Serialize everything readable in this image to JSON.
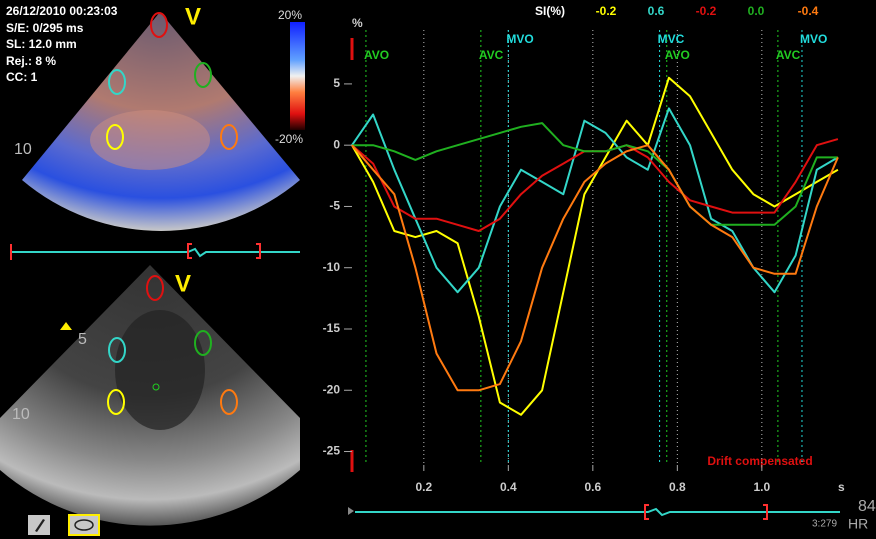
{
  "left_panel": {
    "datetime": "26/12/2010 00:23:03",
    "se": "S/E: 0/295 ms",
    "sl": "SL: 12.0 mm",
    "rej": "Rej.: 8 %",
    "cc": "CC: 1",
    "view_top": "V",
    "view_bottom": "V",
    "scale_max": "20%",
    "scale_min": "-20%",
    "depth_top": "10",
    "depth_bottom_5": "5",
    "depth_bottom_10": "10"
  },
  "chart_data": {
    "type": "line",
    "si_label": "SI(%)",
    "y_label": "%",
    "x_label": "s",
    "note": "Drift compensated",
    "x": [
      0.03,
      0.08,
      0.13,
      0.18,
      0.23,
      0.28,
      0.33,
      0.38,
      0.43,
      0.48,
      0.53,
      0.58,
      0.63,
      0.68,
      0.73,
      0.78,
      0.83,
      0.88,
      0.93,
      0.98,
      1.03,
      1.08,
      1.13,
      1.18
    ],
    "series": [
      {
        "color": "#ffff00",
        "si": -0.2,
        "values": [
          0,
          -3,
          -7,
          -7.5,
          -7,
          -8,
          -14,
          -21,
          -22,
          -20,
          -12,
          -4,
          -1,
          2,
          0,
          5.5,
          4,
          1,
          -2,
          -4,
          -5,
          -4,
          -3,
          -2
        ]
      },
      {
        "color": "#33d6c8",
        "si": 0.6,
        "values": [
          0,
          2.5,
          -2,
          -6,
          -10,
          -12,
          -10,
          -5,
          -2,
          -3,
          -4,
          2,
          1,
          -1,
          -2,
          3,
          0,
          -6,
          -7,
          -10,
          -12,
          -9,
          -2,
          -1
        ]
      },
      {
        "color": "#e01010",
        "si": -0.2,
        "values": [
          0,
          -1.5,
          -5,
          -6,
          -6,
          -6.5,
          -7,
          -6,
          -4,
          -2.5,
          -1.5,
          -0.5,
          -0.5,
          0,
          -1,
          -3,
          -4.5,
          -5,
          -5.5,
          -5.5,
          -5.5,
          -3,
          0,
          0.5
        ]
      },
      {
        "color": "#20b020",
        "si": {
          "value": 0,
          "label": "0.0"
        },
        "values": [
          0,
          0,
          -0.5,
          -1.2,
          -0.5,
          0,
          0.5,
          1,
          1.5,
          1.8,
          0,
          -0.5,
          -0.5,
          0,
          -0.5,
          -2,
          -5,
          -6.5,
          -6.5,
          -6.5,
          -6.5,
          -5,
          -1,
          -1
        ]
      },
      {
        "color": "#ff7a10",
        "si": -0.4,
        "values": [
          0,
          -2,
          -4,
          -10,
          -17,
          -20,
          -20,
          -19.5,
          -16,
          -10,
          -6,
          -3,
          -1.5,
          -0.5,
          0,
          -2,
          -5,
          -6.5,
          -7.5,
          -10,
          -10.5,
          -10.5,
          -5,
          -1
        ]
      }
    ],
    "events": [
      {
        "label": "AVO",
        "x": 0.063,
        "color": "#22cc22"
      },
      {
        "label": "AVC",
        "x": 0.335,
        "color": "#22cc22"
      },
      {
        "label": "MVO",
        "x": 0.4,
        "color": "#22dddd"
      },
      {
        "label": "MVC",
        "x": 0.758,
        "color": "#22dddd"
      },
      {
        "label": "AVO",
        "x": 0.775,
        "color": "#22cc22"
      },
      {
        "label": "AVC",
        "x": 1.038,
        "color": "#22cc22"
      },
      {
        "label": "MVO",
        "x": 1.095,
        "color": "#22dddd"
      }
    ],
    "xlim": [
      0.03,
      1.185
    ],
    "ylim": [
      -26.1,
      9.4
    ],
    "xticks": [
      0.2,
      0.4,
      0.6,
      0.8,
      {
        "value": 1,
        "label": "1.0"
      }
    ],
    "yticks": [
      5,
      0,
      -5,
      -10,
      -15,
      -20,
      -25
    ],
    "grid": "x"
  },
  "footer": {
    "hr_value": "84",
    "time": "3:279",
    "hr_label": "HR"
  }
}
